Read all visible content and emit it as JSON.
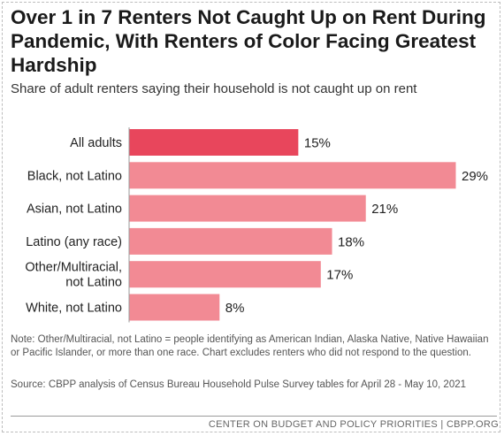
{
  "chart_data": {
    "type": "bar",
    "orientation": "horizontal",
    "title": "Over 1 in 7 Renters Not Caught Up on Rent During Pandemic, With Renters of Color Facing Greatest Hardship",
    "subtitle": "Share of adult renters saying their household is not caught up on rent",
    "categories": [
      "All adults",
      "Black, not Latino",
      "Asian, not Latino",
      "Latino (any race)",
      "Other/Multiracial, not Latino",
      "White, not Latino"
    ],
    "category_lines": [
      [
        "All adults"
      ],
      [
        "Black, not Latino"
      ],
      [
        "Asian, not Latino"
      ],
      [
        "Latino (any race)"
      ],
      [
        "Other/Multiracial,",
        "not Latino"
      ],
      [
        "White, not Latino"
      ]
    ],
    "values": [
      15,
      29,
      21,
      18,
      17,
      8
    ],
    "value_labels": [
      "15%",
      "29%",
      "21%",
      "18%",
      "17%",
      "8%"
    ],
    "unit": "%",
    "xlim": [
      0,
      29
    ],
    "grid": false,
    "legend": "none",
    "colors": {
      "highlight": "#e8465c",
      "bar": "#f28a94",
      "text": "#222222"
    },
    "highlight_index": 0
  },
  "note": "Note: Other/Multiracial, not Latino = people identifying as American Indian, Alaska Native, Native Hawaiian or Pacific Islander, or more than one race. Chart excludes renters who did not respond to the question.",
  "source": "Source: CBPP analysis of Census Bureau Household Pulse Survey tables for April 28 - May 10, 2021",
  "credit": "CENTER ON BUDGET AND POLICY PRIORITIES | CBPP.ORG"
}
